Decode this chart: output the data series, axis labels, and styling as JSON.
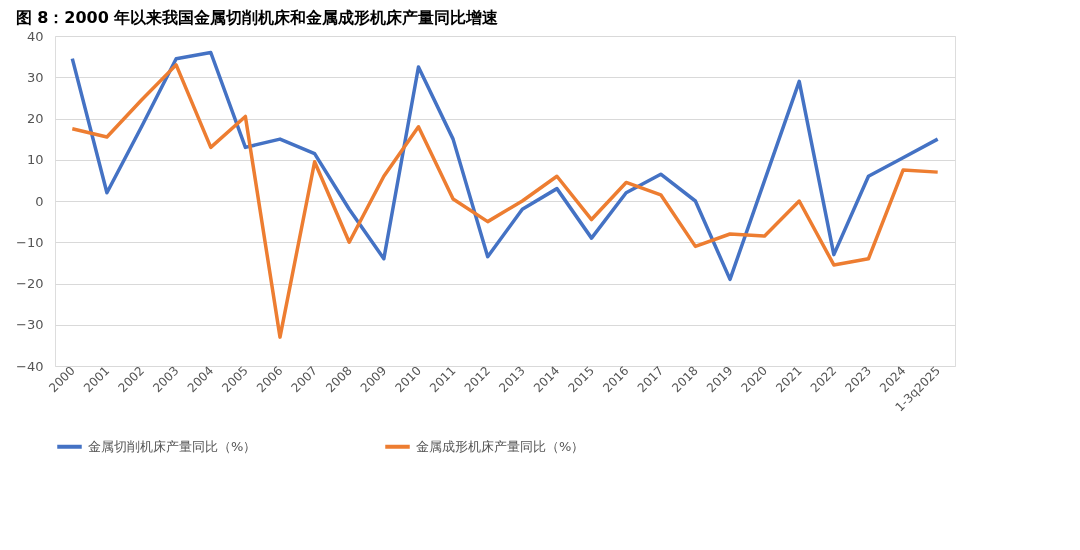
{
  "chart_data": {
    "type": "line",
    "title": "图 8：2000 年以来我国金属切削机床和金属成形机床产量同比增速",
    "categories": [
      "2000",
      "2001",
      "2002",
      "2003",
      "2004",
      "2005",
      "2006",
      "2007",
      "2008",
      "2009",
      "2010",
      "2011",
      "2012",
      "2013",
      "2014",
      "2015",
      "2016",
      "2017",
      "2018",
      "2019",
      "2020",
      "2021",
      "2022",
      "2023",
      "2024",
      "1-3q2025"
    ],
    "series": [
      {
        "name": "金属切削机床产量同比（%）",
        "color": "#4472c4",
        "values": [
          34.5,
          2,
          18,
          34.5,
          36,
          13,
          15,
          11.5,
          -2,
          -14,
          32.5,
          15,
          -13.5,
          -2,
          3,
          -9,
          2,
          6.5,
          0,
          -19,
          5,
          29,
          -13,
          6,
          10.5,
          15
        ]
      },
      {
        "name": "金属成形机床产量同比（%）",
        "color": "#ed7d31",
        "values": [
          17.5,
          15.5,
          24.5,
          33,
          13,
          20.5,
          -33,
          9.5,
          -10,
          6,
          18,
          0.5,
          -5,
          0,
          6,
          -4.5,
          4.5,
          1.5,
          -11,
          -8,
          -8.5,
          0,
          -15.5,
          -14,
          7.5,
          7
        ]
      }
    ],
    "ylim": [
      -40,
      40
    ],
    "yticks": [
      -40,
      -30,
      -20,
      -10,
      0,
      10,
      20,
      30,
      40
    ],
    "grid": "y",
    "legend": "bottom",
    "marker": "none",
    "line_style": "solid"
  }
}
